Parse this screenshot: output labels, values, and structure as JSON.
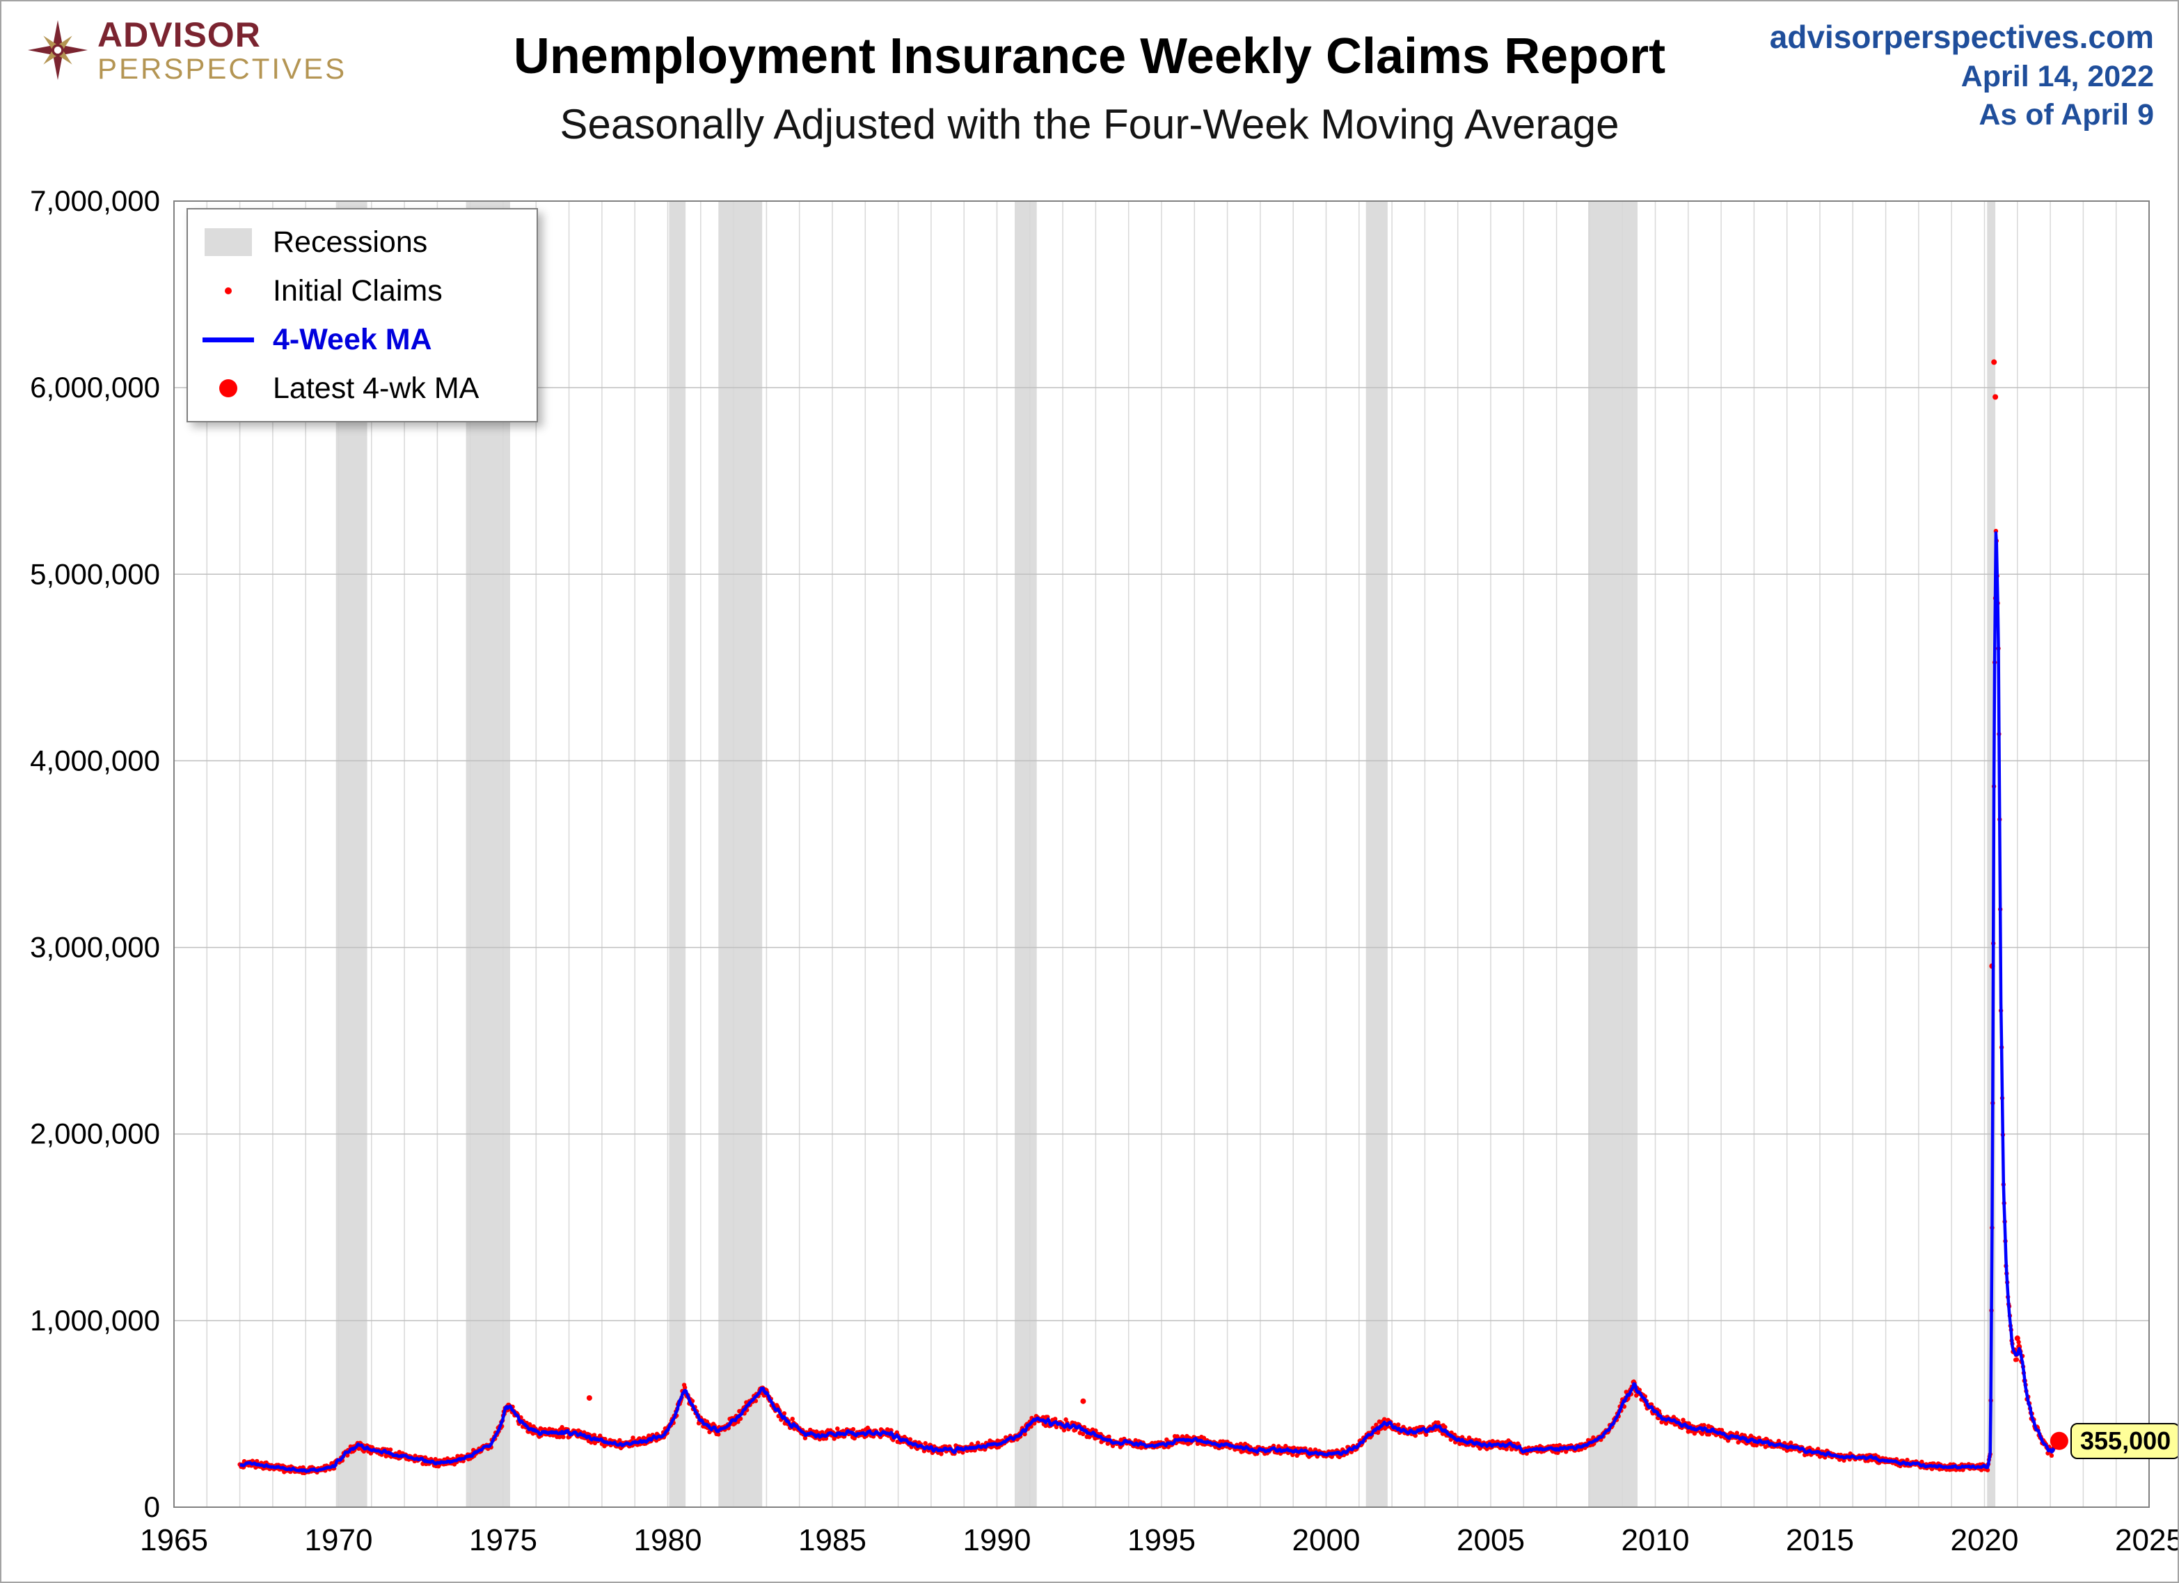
{
  "header": {
    "logo": {
      "line1": "ADVISOR",
      "line2": "PERSPECTIVES",
      "icon": "compass-star-icon",
      "color1": "#7b2430",
      "color2": "#b49553"
    },
    "title": "Unemployment Insurance Weekly Claims Report",
    "subtitle": "Seasonally Adjusted with the Four-Week Moving Average",
    "source": {
      "site": "advisorperspectives.com",
      "date": "April 14, 2022",
      "asof": "As of April 9",
      "color": "#1f4e9b"
    }
  },
  "legend": {
    "items": [
      {
        "label": "Recessions",
        "type": "band",
        "color": "#dcdcdc"
      },
      {
        "label": "Initial Claims",
        "type": "dot-small",
        "color": "#ff0000"
      },
      {
        "label": "4-Week MA",
        "type": "line",
        "color": "#0000ff"
      },
      {
        "label": "Latest 4-wk MA",
        "type": "dot-large",
        "color": "#ff0000"
      }
    ]
  },
  "chart_data": {
    "type": "line",
    "title": "Unemployment Insurance Weekly Claims Report",
    "subtitle": "Seasonally Adjusted with the Four-Week Moving Average",
    "x_range": [
      1965,
      2025
    ],
    "y_range": [
      0,
      7000000
    ],
    "x_ticks": [
      1965,
      1970,
      1975,
      1980,
      1985,
      1990,
      1995,
      2000,
      2005,
      2010,
      2015,
      2020,
      2025
    ],
    "y_ticks": [
      0,
      1000000,
      2000000,
      3000000,
      4000000,
      5000000,
      6000000,
      7000000
    ],
    "y_tick_labels": [
      "0",
      "1,000,000",
      "2,000,000",
      "3,000,000",
      "4,000,000",
      "5,000,000",
      "6,000,000",
      "7,000,000"
    ],
    "grid": true,
    "legend_position": "top-left",
    "colors": {
      "recession": "#dcdcdc",
      "grid_v": "#d8d8d8",
      "grid_h": "#bfbfbf",
      "border": "#808080",
      "claims": "#ff0000",
      "ma": "#0000ff"
    },
    "recessions": [
      [
        1969.92,
        1970.87
      ],
      [
        1973.87,
        1975.21
      ],
      [
        1980.04,
        1980.54
      ],
      [
        1981.54,
        1982.87
      ],
      [
        1990.54,
        1991.21
      ],
      [
        2001.21,
        2001.87
      ],
      [
        2007.96,
        2009.46
      ],
      [
        2020.08,
        2020.33
      ]
    ],
    "series": [
      {
        "name": "Initial Claims",
        "type": "scatter",
        "color": "#ff0000"
      },
      {
        "name": "4-Week MA",
        "type": "line",
        "color": "#0000ff"
      }
    ],
    "ma_anchors": [
      [
        1967.0,
        215000
      ],
      [
        1967.3,
        240000
      ],
      [
        1967.6,
        225000
      ],
      [
        1968.0,
        215000
      ],
      [
        1968.5,
        200000
      ],
      [
        1969.0,
        195000
      ],
      [
        1969.5,
        200000
      ],
      [
        1969.9,
        225000
      ],
      [
        1970.2,
        290000
      ],
      [
        1970.6,
        330000
      ],
      [
        1971.0,
        310000
      ],
      [
        1971.4,
        295000
      ],
      [
        1971.8,
        280000
      ],
      [
        1972.2,
        265000
      ],
      [
        1972.6,
        250000
      ],
      [
        1973.0,
        240000
      ],
      [
        1973.4,
        245000
      ],
      [
        1973.8,
        260000
      ],
      [
        1974.2,
        300000
      ],
      [
        1974.6,
        330000
      ],
      [
        1974.9,
        420000
      ],
      [
        1975.1,
        550000
      ],
      [
        1975.25,
        535000
      ],
      [
        1975.5,
        470000
      ],
      [
        1975.8,
        420000
      ],
      [
        1976.1,
        400000
      ],
      [
        1976.4,
        395000
      ],
      [
        1976.8,
        405000
      ],
      [
        1977.1,
        395000
      ],
      [
        1977.4,
        385000
      ],
      [
        1977.8,
        370000
      ],
      [
        1978.1,
        350000
      ],
      [
        1978.5,
        340000
      ],
      [
        1979.0,
        345000
      ],
      [
        1979.5,
        365000
      ],
      [
        1979.9,
        390000
      ],
      [
        1980.2,
        480000
      ],
      [
        1980.45,
        620000
      ],
      [
        1980.6,
        600000
      ],
      [
        1980.9,
        480000
      ],
      [
        1981.2,
        430000
      ],
      [
        1981.5,
        410000
      ],
      [
        1981.8,
        430000
      ],
      [
        1982.1,
        480000
      ],
      [
        1982.4,
        540000
      ],
      [
        1982.7,
        600000
      ],
      [
        1982.9,
        640000
      ],
      [
        1983.1,
        580000
      ],
      [
        1983.4,
        500000
      ],
      [
        1983.8,
        440000
      ],
      [
        1984.2,
        390000
      ],
      [
        1984.6,
        380000
      ],
      [
        1985.0,
        390000
      ],
      [
        1985.4,
        395000
      ],
      [
        1985.8,
        400000
      ],
      [
        1986.2,
        395000
      ],
      [
        1986.6,
        400000
      ],
      [
        1987.0,
        375000
      ],
      [
        1987.4,
        340000
      ],
      [
        1987.8,
        320000
      ],
      [
        1988.2,
        310000
      ],
      [
        1988.6,
        305000
      ],
      [
        1989.0,
        315000
      ],
      [
        1989.4,
        325000
      ],
      [
        1989.8,
        335000
      ],
      [
        1990.2,
        350000
      ],
      [
        1990.6,
        380000
      ],
      [
        1990.9,
        430000
      ],
      [
        1991.2,
        475000
      ],
      [
        1991.5,
        455000
      ],
      [
        1991.8,
        445000
      ],
      [
        1992.1,
        440000
      ],
      [
        1992.4,
        425000
      ],
      [
        1992.8,
        400000
      ],
      [
        1993.2,
        370000
      ],
      [
        1993.6,
        345000
      ],
      [
        1994.0,
        350000
      ],
      [
        1994.4,
        335000
      ],
      [
        1994.8,
        325000
      ],
      [
        1995.2,
        345000
      ],
      [
        1995.6,
        365000
      ],
      [
        1996.0,
        360000
      ],
      [
        1996.4,
        350000
      ],
      [
        1996.8,
        335000
      ],
      [
        1997.2,
        325000
      ],
      [
        1997.6,
        315000
      ],
      [
        1998.0,
        305000
      ],
      [
        1998.4,
        310000
      ],
      [
        1998.8,
        305000
      ],
      [
        1999.2,
        295000
      ],
      [
        1999.6,
        290000
      ],
      [
        2000.0,
        280000
      ],
      [
        2000.4,
        290000
      ],
      [
        2000.8,
        310000
      ],
      [
        2001.1,
        350000
      ],
      [
        2001.4,
        400000
      ],
      [
        2001.7,
        440000
      ],
      [
        2001.9,
        450000
      ],
      [
        2002.2,
        420000
      ],
      [
        2002.5,
        400000
      ],
      [
        2002.8,
        405000
      ],
      [
        2003.1,
        415000
      ],
      [
        2003.4,
        430000
      ],
      [
        2003.7,
        400000
      ],
      [
        2004.0,
        360000
      ],
      [
        2004.4,
        345000
      ],
      [
        2004.8,
        335000
      ],
      [
        2005.2,
        330000
      ],
      [
        2005.6,
        335000
      ],
      [
        2006.0,
        305000
      ],
      [
        2006.4,
        310000
      ],
      [
        2006.8,
        315000
      ],
      [
        2007.2,
        315000
      ],
      [
        2007.6,
        320000
      ],
      [
        2008.0,
        345000
      ],
      [
        2008.4,
        380000
      ],
      [
        2008.8,
        470000
      ],
      [
        2009.1,
        580000
      ],
      [
        2009.35,
        650000
      ],
      [
        2009.6,
        590000
      ],
      [
        2009.9,
        530000
      ],
      [
        2010.2,
        480000
      ],
      [
        2010.6,
        465000
      ],
      [
        2011.0,
        425000
      ],
      [
        2011.4,
        420000
      ],
      [
        2011.8,
        405000
      ],
      [
        2012.2,
        380000
      ],
      [
        2012.6,
        370000
      ],
      [
        2013.0,
        355000
      ],
      [
        2013.4,
        345000
      ],
      [
        2013.8,
        335000
      ],
      [
        2014.2,
        320000
      ],
      [
        2014.6,
        300000
      ],
      [
        2015.0,
        290000
      ],
      [
        2015.4,
        275000
      ],
      [
        2015.8,
        270000
      ],
      [
        2016.2,
        265000
      ],
      [
        2016.6,
        260000
      ],
      [
        2017.0,
        250000
      ],
      [
        2017.4,
        240000
      ],
      [
        2017.8,
        235000
      ],
      [
        2018.2,
        225000
      ],
      [
        2018.6,
        215000
      ],
      [
        2019.0,
        220000
      ],
      [
        2019.4,
        215000
      ],
      [
        2019.8,
        215000
      ],
      [
        2020.1,
        215000
      ],
      [
        2020.18,
        300000
      ],
      [
        2020.24,
        1700000
      ],
      [
        2020.3,
        4400000
      ],
      [
        2020.35,
        5300000
      ],
      [
        2020.42,
        4700000
      ],
      [
        2020.5,
        2700000
      ],
      [
        2020.58,
        1700000
      ],
      [
        2020.66,
        1300000
      ],
      [
        2020.75,
        1050000
      ],
      [
        2020.85,
        850000
      ],
      [
        2020.95,
        820000
      ],
      [
        2021.05,
        850000
      ],
      [
        2021.15,
        780000
      ],
      [
        2021.25,
        640000
      ],
      [
        2021.35,
        550000
      ],
      [
        2021.45,
        480000
      ],
      [
        2021.55,
        430000
      ],
      [
        2021.65,
        395000
      ],
      [
        2021.75,
        360000
      ],
      [
        2021.85,
        330000
      ],
      [
        2021.95,
        305000
      ],
      [
        2022.05,
        300000
      ],
      [
        2022.15,
        330000
      ],
      [
        2022.27,
        355000
      ]
    ],
    "outlier_dots": [
      [
        1977.62,
        585000
      ],
      [
        1992.62,
        568000
      ],
      [
        2020.23,
        2900000
      ],
      [
        2020.29,
        6137000
      ],
      [
        2020.33,
        5950000
      ],
      [
        2021.0,
        905000
      ],
      [
        2021.05,
        860000
      ]
    ],
    "latest": {
      "x": 2022.27,
      "value": 355000,
      "label": "355,000"
    },
    "noise": {
      "base": 9000,
      "frac": 0.055,
      "cap": 45000,
      "seed": 20220414
    }
  }
}
